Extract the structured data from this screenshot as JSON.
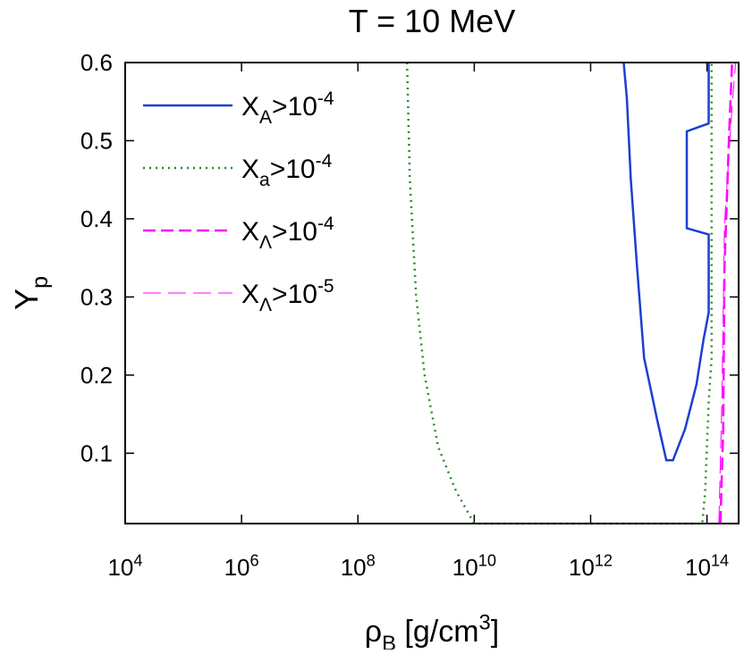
{
  "chart_data": {
    "type": "line",
    "title": "T = 10 MeV",
    "x_label": "ρ_{B} [g/cm^{3}]",
    "y_label": "Y_{p}",
    "x_log": true,
    "xlim": [
      10000,
      350000000000000
    ],
    "ylim": [
      0.01,
      0.6
    ],
    "xticks": [
      {
        "value": 10000,
        "label": "10^{4}"
      },
      {
        "value": 1000000,
        "label": "10^{6}"
      },
      {
        "value": 100000000,
        "label": "10^{8}"
      },
      {
        "value": 10000000000,
        "label": "10^{10}"
      },
      {
        "value": 1000000000000,
        "label": "10^{12}"
      },
      {
        "value": 100000000000000,
        "label": "10^{14}"
      }
    ],
    "yticks": [
      0.1,
      0.2,
      0.3,
      0.4,
      0.5,
      0.6
    ],
    "legend": "upper left",
    "series": [
      {
        "name": "X_{A}>10^{-4}",
        "color": "#1c3fd0",
        "style": "solid",
        "width": 2.5,
        "x": [
          3700000000000.0,
          4200000000000.0,
          4900000000000.0,
          6300000000000.0,
          8300000000000.0,
          14000000000000.0,
          20000000000000.0,
          26000000000000.0,
          42000000000000.0,
          66000000000000.0,
          87000000000000.0,
          107000000000000.0,
          107000000000000.0,
          45000000000000.0,
          45000000000000.0,
          107000000000000.0,
          107000000000000.0
        ],
        "values": [
          0.6,
          0.554,
          0.451,
          0.337,
          0.222,
          0.142,
          0.091,
          0.091,
          0.131,
          0.188,
          0.245,
          0.28,
          0.38,
          0.388,
          0.512,
          0.522,
          0.6
        ]
      },
      {
        "name": "X_{a}>10^{-4}",
        "color": "#2a8a2a",
        "style": "dotted",
        "width": 2.5,
        "x": [
          700000000.0,
          780000000.0,
          1000000000.0,
          1400000000.0,
          2400000000.0,
          4900000000.0,
          10000000000.0,
          83000000000000.0,
          93000000000000.0,
          107000000000000.0,
          120000000000000.0,
          120000000000000.0
        ],
        "values": [
          0.6,
          0.451,
          0.302,
          0.2,
          0.108,
          0.051,
          0.01,
          0.01,
          0.051,
          0.165,
          0.222,
          0.6
        ]
      },
      {
        "name": "X_{Λ}>10^{-4}",
        "color": "#ff00ff",
        "style": "dashed",
        "width": 2.5,
        "x": [
          170000000000000.0,
          190000000000000.0,
          200000000000000.0,
          240000000000000.0,
          270000000000000.0
        ],
        "values": [
          0.01,
          0.131,
          0.337,
          0.508,
          0.6
        ]
      },
      {
        "name": "X_{Λ}>10^{-5}",
        "color": "#ff00ff",
        "style": "long-dashed",
        "width": 1,
        "x": [
          160000000000000.0,
          180000000000000.0,
          200000000000000.0,
          270000000000000.0,
          310000000000000.0
        ],
        "values": [
          0.01,
          0.165,
          0.394,
          0.543,
          0.6
        ]
      }
    ]
  }
}
